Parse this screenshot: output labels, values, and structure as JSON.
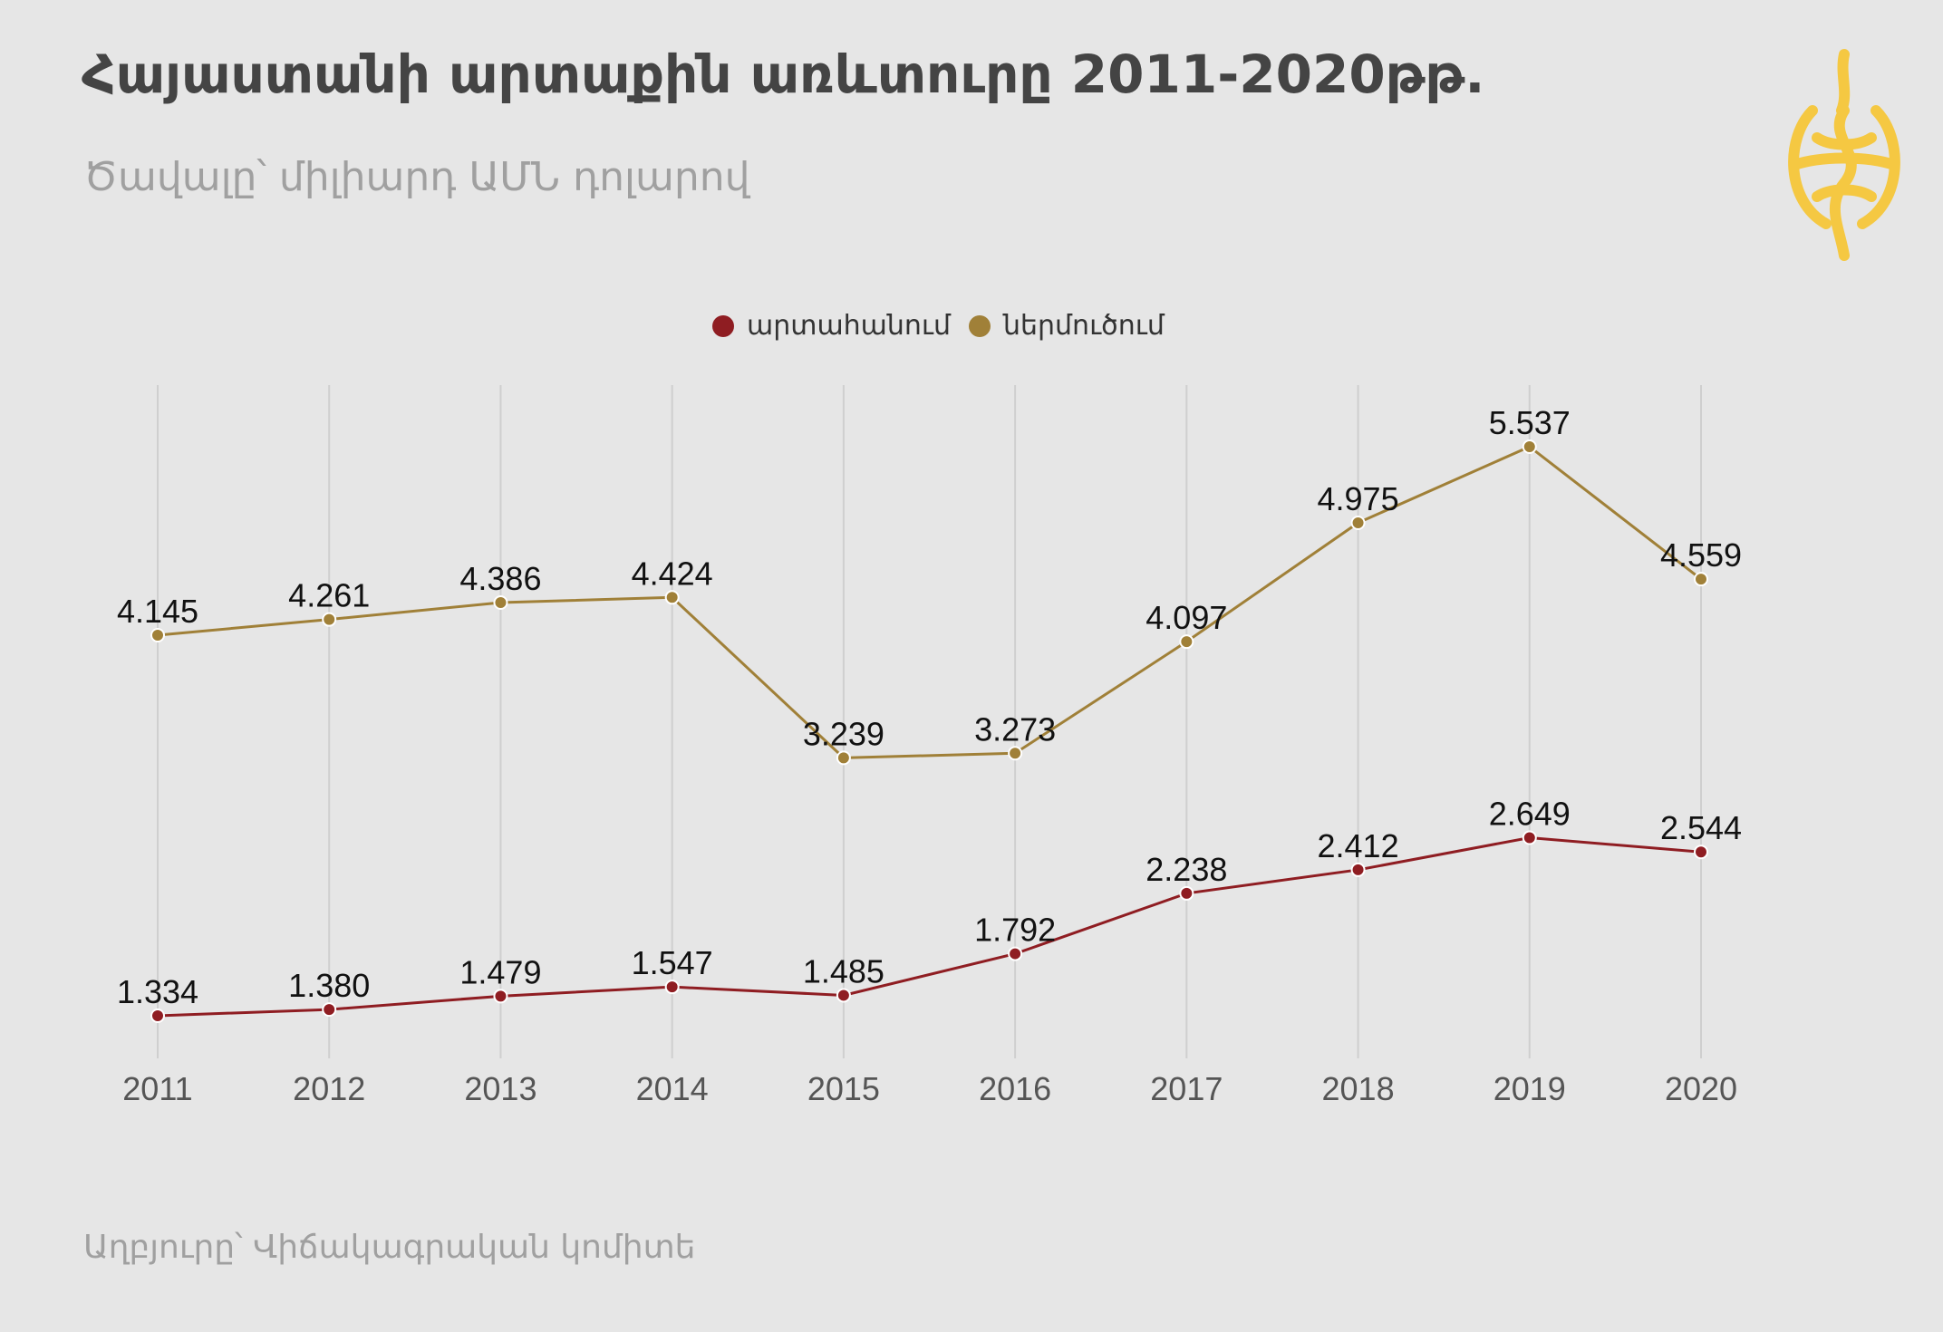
{
  "title": "Հայաստանի արտաքին առևտուրը 2011-2020թթ.",
  "subtitle": "Ծավալը՝ միլիարդ ԱՄՆ դոլարով",
  "source": "Աղբյուրը՝ Վիճակագրական կոմիտե",
  "logo_icon": "armenian-emblem-icon",
  "colors": {
    "background": "#e6e6e6",
    "export": "#8f1d22",
    "import": "#a08038",
    "logo": "#f5c842",
    "grid": "#cfcfcf"
  },
  "chart_data": {
    "type": "line",
    "title": "Հայաստանի արտաքին առևտուրը 2011-2020թթ.",
    "subtitle": "Ծավալը՝ միլիարդ ԱՄՆ դոլարով",
    "xlabel": "",
    "ylabel": "",
    "grid": "vertical",
    "legend_position": "top-center",
    "categories": [
      "2011",
      "2012",
      "2013",
      "2014",
      "2015",
      "2016",
      "2017",
      "2018",
      "2019",
      "2020"
    ],
    "series": [
      {
        "name": "արտահանում",
        "color": "#8f1d22",
        "values": [
          1.334,
          1.38,
          1.479,
          1.547,
          1.485,
          1.792,
          2.238,
          2.412,
          2.649,
          2.544
        ],
        "labels": [
          "1.334",
          "1.380",
          "1.479",
          "1.547",
          "1.485",
          "1.792",
          "2.238",
          "2.412",
          "2.649",
          "2.544"
        ]
      },
      {
        "name": "ներմուծում",
        "color": "#a08038",
        "values": [
          4.145,
          4.261,
          4.386,
          4.424,
          3.239,
          3.273,
          4.097,
          4.975,
          5.537,
          4.559
        ],
        "labels": [
          "4.145",
          "4.261",
          "4.386",
          "4.424",
          "3.239",
          "3.273",
          "4.097",
          "4.975",
          "5.537",
          "4.559"
        ]
      }
    ]
  }
}
